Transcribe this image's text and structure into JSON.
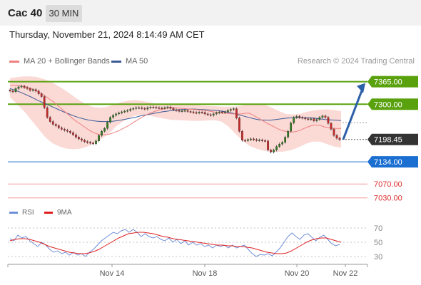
{
  "header": {
    "instrument": "Cac 40",
    "timeframe": "30 MIN",
    "datetime": "Thursday, November 21, 2024 8:14:49 AM CET"
  },
  "legend": {
    "ma20_label": "MA 20 + Bollinger Bands",
    "ma50_label": "MA 50",
    "credit": "Research © 2024 Trading Central",
    "rsi_label": "RSI",
    "rsi_ma_label": "9MA"
  },
  "colors": {
    "ma20": "#f08080",
    "ma50": "#3a5a98",
    "bollinger_fill": "#fbd9d5",
    "resistance": "#5aa10e",
    "support": "#1a6fd1",
    "target_low": "#f29a9a",
    "target_low_text": "#e03030",
    "candle_up": "#2e7d1e",
    "candle_down": "#c62828",
    "arrow": "#2b5fa8",
    "current": "#333333",
    "rsi": "#6f8fd8",
    "rsi_ma": "#e02020"
  },
  "chart_data": [
    {
      "type": "candlestick",
      "title": "Cac 40",
      "timeframe": "30 MIN",
      "x_labels": [
        "Nov 14",
        "Nov 18",
        "Nov 20",
        "Nov 22"
      ],
      "ylim": [
        7015,
        7395
      ],
      "levels": [
        {
          "label": "7365.00",
          "value": 7365,
          "kind": "resistance"
        },
        {
          "label": "7300.00",
          "value": 7300,
          "kind": "resistance"
        },
        {
          "label": "7198.45",
          "value": 7198.45,
          "kind": "current"
        },
        {
          "label": "7134.00",
          "value": 7134,
          "kind": "support"
        },
        {
          "label": "7070.00",
          "value": 7070,
          "kind": "target"
        },
        {
          "label": "7030.00",
          "value": 7030,
          "kind": "target"
        }
      ],
      "close": [
        7338,
        7336,
        7345,
        7350,
        7352,
        7348,
        7345,
        7340,
        7342,
        7338,
        7330,
        7322,
        7290,
        7262,
        7250,
        7242,
        7238,
        7232,
        7228,
        7225,
        7222,
        7218,
        7212,
        7205,
        7200,
        7196,
        7192,
        7190,
        7188,
        7186,
        7194,
        7210,
        7222,
        7230,
        7248,
        7262,
        7268,
        7272,
        7275,
        7278,
        7280,
        7282,
        7286,
        7288,
        7290,
        7290,
        7288,
        7286,
        7290,
        7292,
        7291,
        7290,
        7289,
        7288,
        7290,
        7292,
        7288,
        7284,
        7282,
        7280,
        7281,
        7282,
        7279,
        7278,
        7276,
        7275,
        7277,
        7276,
        7272,
        7270,
        7268,
        7272,
        7275,
        7278,
        7276,
        7278,
        7282,
        7285,
        7287,
        7260,
        7222,
        7196,
        7195,
        7198,
        7200,
        7198,
        7196,
        7197,
        7195,
        7194,
        7168,
        7162,
        7168,
        7178,
        7185,
        7190,
        7205,
        7222,
        7246,
        7262,
        7265,
        7262,
        7260,
        7258,
        7256,
        7258,
        7252,
        7256,
        7262,
        7266,
        7262,
        7245,
        7228,
        7210,
        7202,
        7198
      ],
      "ma20": [
        7355,
        7355,
        7354,
        7352,
        7350,
        7346,
        7342,
        7336,
        7330,
        7322,
        7314,
        7306,
        7296,
        7286,
        7276,
        7266,
        7256,
        7248,
        7240,
        7232,
        7224,
        7218,
        7214,
        7212,
        7212,
        7214,
        7218,
        7222,
        7228,
        7234,
        7240,
        7248,
        7255,
        7262,
        7268,
        7274,
        7278,
        7282,
        7285,
        7288,
        7290,
        7290,
        7289,
        7288,
        7287,
        7286,
        7285,
        7284,
        7283,
        7282,
        7280,
        7278,
        7276,
        7275,
        7274,
        7273,
        7272,
        7272,
        7272,
        7274,
        7274,
        7268,
        7262,
        7255,
        7248,
        7242,
        7236,
        7230,
        7225,
        7222,
        7220,
        7220,
        7222,
        7226,
        7232,
        7236,
        7240,
        7240,
        7238,
        7234,
        7232,
        7230,
        7230,
        7230
      ],
      "ma50": [
        7345,
        7340,
        7334,
        7327,
        7320,
        7312,
        7305,
        7298,
        7291,
        7284,
        7277,
        7271,
        7265,
        7260,
        7256,
        7253,
        7251,
        7250,
        7250,
        7251,
        7253,
        7256,
        7259,
        7262,
        7266,
        7269,
        7272,
        7275,
        7278,
        7280,
        7282,
        7284,
        7285,
        7286,
        7286,
        7285,
        7284,
        7283,
        7282,
        7280,
        7277,
        7274,
        7270,
        7266,
        7262,
        7258,
        7255,
        7254,
        7254,
        7256,
        7258,
        7260,
        7261,
        7261,
        7261,
        7261,
        7260,
        7258,
        7256,
        7255,
        7254,
        7253
      ],
      "bollinger_upper": [
        7375,
        7378,
        7380,
        7380,
        7378,
        7372,
        7364,
        7352,
        7340,
        7326,
        7312,
        7300,
        7292,
        7290,
        7292,
        7298,
        7305,
        7310,
        7312,
        7310,
        7306,
        7302,
        7300,
        7300,
        7300,
        7300,
        7299,
        7298,
        7296,
        7295,
        7294,
        7293,
        7293,
        7294,
        7298,
        7300,
        7300,
        7298,
        7290,
        7280,
        7272,
        7270,
        7272,
        7278,
        7282,
        7284,
        7285,
        7283,
        7280
      ],
      "bollinger_lower": [
        7320,
        7300,
        7280,
        7255,
        7230,
        7205,
        7188,
        7178,
        7172,
        7170,
        7172,
        7178,
        7188,
        7200,
        7215,
        7235,
        7250,
        7262,
        7268,
        7270,
        7266,
        7262,
        7258,
        7255,
        7254,
        7253,
        7252,
        7252,
        7253,
        7254,
        7250,
        7236,
        7215,
        7195,
        7180,
        7172,
        7166,
        7163,
        7162,
        7164,
        7168,
        7176,
        7186,
        7192,
        7192,
        7185,
        7178,
        7175
      ]
    },
    {
      "type": "line",
      "title": "RSI",
      "x_labels": [
        "Nov 14",
        "Nov 18",
        "Nov 20",
        "Nov 22"
      ],
      "ylim": [
        20,
        80
      ],
      "y_ticks": [
        70,
        50,
        30
      ],
      "series": [
        {
          "name": "RSI",
          "values": [
            55,
            52,
            60,
            56,
            58,
            52,
            48,
            44,
            50,
            46,
            40,
            36,
            38,
            34,
            36,
            32,
            36,
            32,
            34,
            30,
            36,
            40,
            46,
            52,
            56,
            60,
            64,
            62,
            66,
            68,
            64,
            68,
            64,
            58,
            62,
            58,
            56,
            58,
            54,
            52,
            56,
            50,
            54,
            48,
            52,
            46,
            50,
            46,
            48,
            44,
            46,
            42,
            46,
            44,
            46,
            42,
            46,
            42,
            44,
            46,
            40,
            34,
            30,
            33,
            32,
            34,
            31,
            36,
            42,
            50,
            58,
            63,
            58,
            54,
            60,
            62,
            57,
            52,
            57,
            60,
            54,
            48,
            45,
            47
          ]
        },
        {
          "name": "9MA",
          "values": [
            52,
            54,
            55,
            55,
            54,
            52,
            50,
            47,
            44,
            42,
            40,
            38,
            36,
            35,
            34,
            34,
            35,
            37,
            40,
            44,
            48,
            52,
            56,
            59,
            62,
            63,
            64,
            64,
            63,
            62,
            60,
            58,
            57,
            55,
            54,
            53,
            52,
            51,
            50,
            49,
            48,
            47,
            46,
            46,
            45,
            45,
            44,
            44,
            43,
            42,
            40,
            38,
            36,
            35,
            34,
            34,
            35,
            38,
            42,
            46,
            50,
            53,
            55,
            56,
            56,
            54,
            52,
            50
          ]
        }
      ]
    }
  ]
}
